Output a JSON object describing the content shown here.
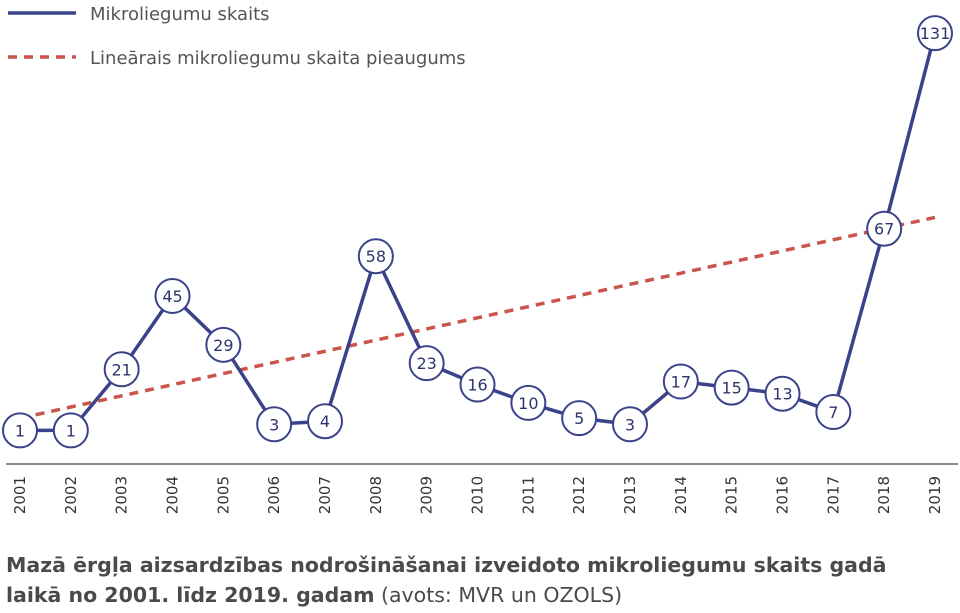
{
  "chart_data": {
    "type": "line",
    "x": [
      2001,
      2002,
      2003,
      2004,
      2005,
      2006,
      2007,
      2008,
      2009,
      2010,
      2011,
      2012,
      2013,
      2014,
      2015,
      2016,
      2017,
      2018,
      2019
    ],
    "series": [
      {
        "name": "Mikroliegumu skaits",
        "values": [
          1,
          1,
          21,
          45,
          29,
          3,
          4,
          58,
          23,
          16,
          10,
          5,
          3,
          17,
          15,
          13,
          7,
          67,
          131
        ],
        "color": "#3a4389",
        "style": "solid",
        "markers": "circle-labels"
      },
      {
        "name": "Lineārais mikroliegumu skaita pieaugums",
        "values": [
          5,
          8.65,
          12.3,
          15.95,
          19.6,
          23.25,
          26.9,
          30.55,
          34.2,
          37.85,
          41.5,
          45.15,
          48.8,
          52.45,
          56.1,
          59.75,
          63.4,
          67.05,
          70.7
        ],
        "color": "#c9554b",
        "style": "dashed"
      }
    ],
    "legend_position": "top-left",
    "grid": false,
    "ylim": [
      -10,
      134
    ],
    "x_tick_rotation": -90
  },
  "caption": {
    "title": "Mazā ērgļa aizsardzības nodrošināšanai izveidoto mikroliegumu skaits gadā laikā no 2001. līdz 2019. gadam",
    "source": "(avots: MVR un OZOLS)"
  }
}
